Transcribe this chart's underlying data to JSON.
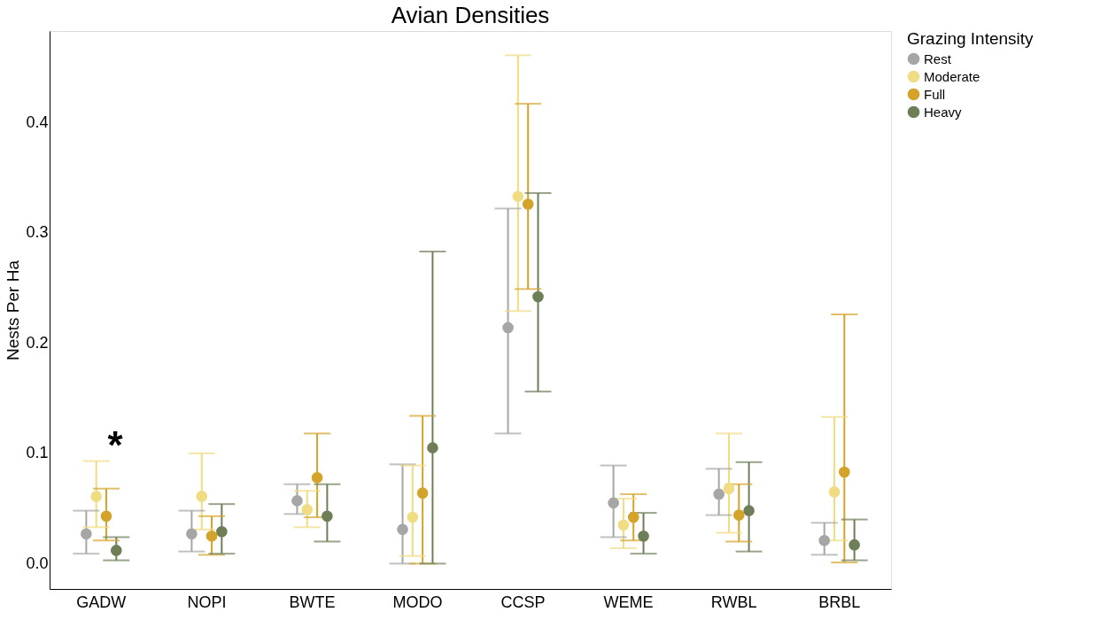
{
  "chart_data": {
    "type": "scatter",
    "title": "Avian Densities",
    "ylabel": "Nests Per Ha",
    "legend_title": "Grazing Intensity",
    "legend": "right",
    "grid": false,
    "marker": "circle",
    "categories": [
      "GADW",
      "NOPI",
      "BWTE",
      "MODO",
      "CCSP",
      "WEME",
      "RWBL",
      "BRBL"
    ],
    "ylim": [
      -0.023,
      0.483
    ],
    "yticks": [
      {
        "value": 0,
        "label": "0.0"
      },
      0.1,
      0.2,
      0.3,
      0.4
    ],
    "series": [
      {
        "name": "Rest",
        "color": "#a6a6a6",
        "values": [
          0.027,
          0.027,
          0.057,
          0.031,
          0.214,
          0.055,
          0.063,
          0.021
        ],
        "errors": [
          [
            0.009,
            0.048
          ],
          [
            0.011,
            0.048
          ],
          [
            0.045,
            0.072
          ],
          [
            0,
            0.09
          ],
          [
            0.118,
            0.322
          ],
          [
            0.024,
            0.089
          ],
          [
            0.044,
            0.086
          ],
          [
            0.008,
            0.037
          ]
        ]
      },
      {
        "name": "Moderate",
        "color": "#f0dc82",
        "values": [
          0.061,
          0.061,
          0.049,
          0.042,
          0.333,
          0.035,
          0.068,
          0.065
        ],
        "errors": [
          [
            0.033,
            0.093
          ],
          [
            0.031,
            0.1
          ],
          [
            0.033,
            0.066
          ],
          [
            0.007,
            0.089
          ],
          [
            0.229,
            0.461
          ],
          [
            0.014,
            0.059
          ],
          [
            0.028,
            0.118
          ],
          [
            0.021,
            0.133
          ]
        ]
      },
      {
        "name": "Full",
        "color": "#d4a32a",
        "values": [
          0.043,
          0.025,
          0.078,
          0.064,
          0.326,
          0.042,
          0.044,
          0.083
        ],
        "errors": [
          [
            0.021,
            0.068
          ],
          [
            0.008,
            0.043
          ],
          [
            0.042,
            0.118
          ],
          [
            0,
            0.134
          ],
          [
            0.249,
            0.417
          ],
          [
            0.021,
            0.063
          ],
          [
            0.02,
            0.072
          ],
          [
            0.001,
            0.226
          ]
        ]
      },
      {
        "name": "Heavy",
        "color": "#6e7f58",
        "values": [
          0.012,
          0.029,
          0.043,
          0.105,
          0.242,
          0.025,
          0.048,
          0.017
        ],
        "errors": [
          [
            0.003,
            0.024
          ],
          [
            0.009,
            0.054
          ],
          [
            0.02,
            0.072
          ],
          [
            0,
            0.283
          ],
          [
            0.156,
            0.336
          ],
          [
            0.009,
            0.046
          ],
          [
            0.011,
            0.092
          ],
          [
            0.003,
            0.04
          ]
        ]
      }
    ],
    "annotations": [
      "*"
    ]
  }
}
